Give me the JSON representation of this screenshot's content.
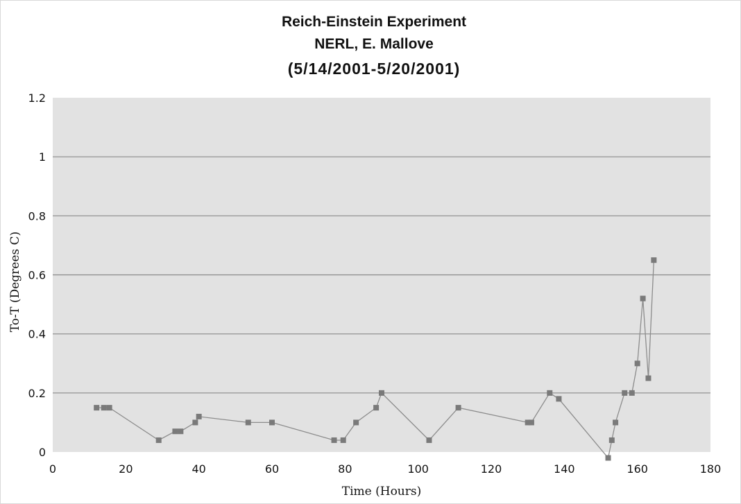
{
  "chart_data": {
    "type": "line",
    "title": "Reich-Einstein Experiment",
    "subtitle": [
      "NERL, E. Mallove",
      "(5/14/2001-5/20/2001)"
    ],
    "xlabel": "Time (Hours)",
    "ylabel": "To-T (Degrees C)",
    "xlim": [
      0,
      180
    ],
    "ylim": [
      0,
      1.2
    ],
    "x_ticks": [
      "0",
      "20",
      "40",
      "60",
      "80",
      "100",
      "120",
      "140",
      "160",
      "180"
    ],
    "y_ticks": [
      "0",
      "0.2",
      "0.4",
      "0.6",
      "0.8",
      "1",
      "1.2"
    ],
    "grid": "horizontal",
    "marker": "square",
    "colors": {
      "plot_bg": "#e2e2e2",
      "gridline": "#8a8a8a",
      "series": "#8c8c8c",
      "marker": "#7a7a7a"
    },
    "x": [
      12,
      14,
      15.5,
      29,
      33.5,
      35,
      39,
      40,
      53.5,
      60,
      77,
      79.5,
      83,
      88.5,
      90,
      103,
      111,
      130,
      131,
      136,
      138.5,
      152,
      153,
      154,
      156.5,
      158.5,
      160,
      161.5,
      163,
      164.5
    ],
    "y": [
      0.15,
      0.15,
      0.15,
      0.04,
      0.07,
      0.07,
      0.1,
      0.12,
      0.1,
      0.1,
      0.04,
      0.04,
      0.1,
      0.15,
      0.2,
      0.04,
      0.15,
      0.1,
      0.1,
      0.2,
      0.18,
      -0.02,
      0.04,
      0.1,
      0.2,
      0.2,
      0.3,
      0.52,
      0.25,
      0.65
    ]
  }
}
